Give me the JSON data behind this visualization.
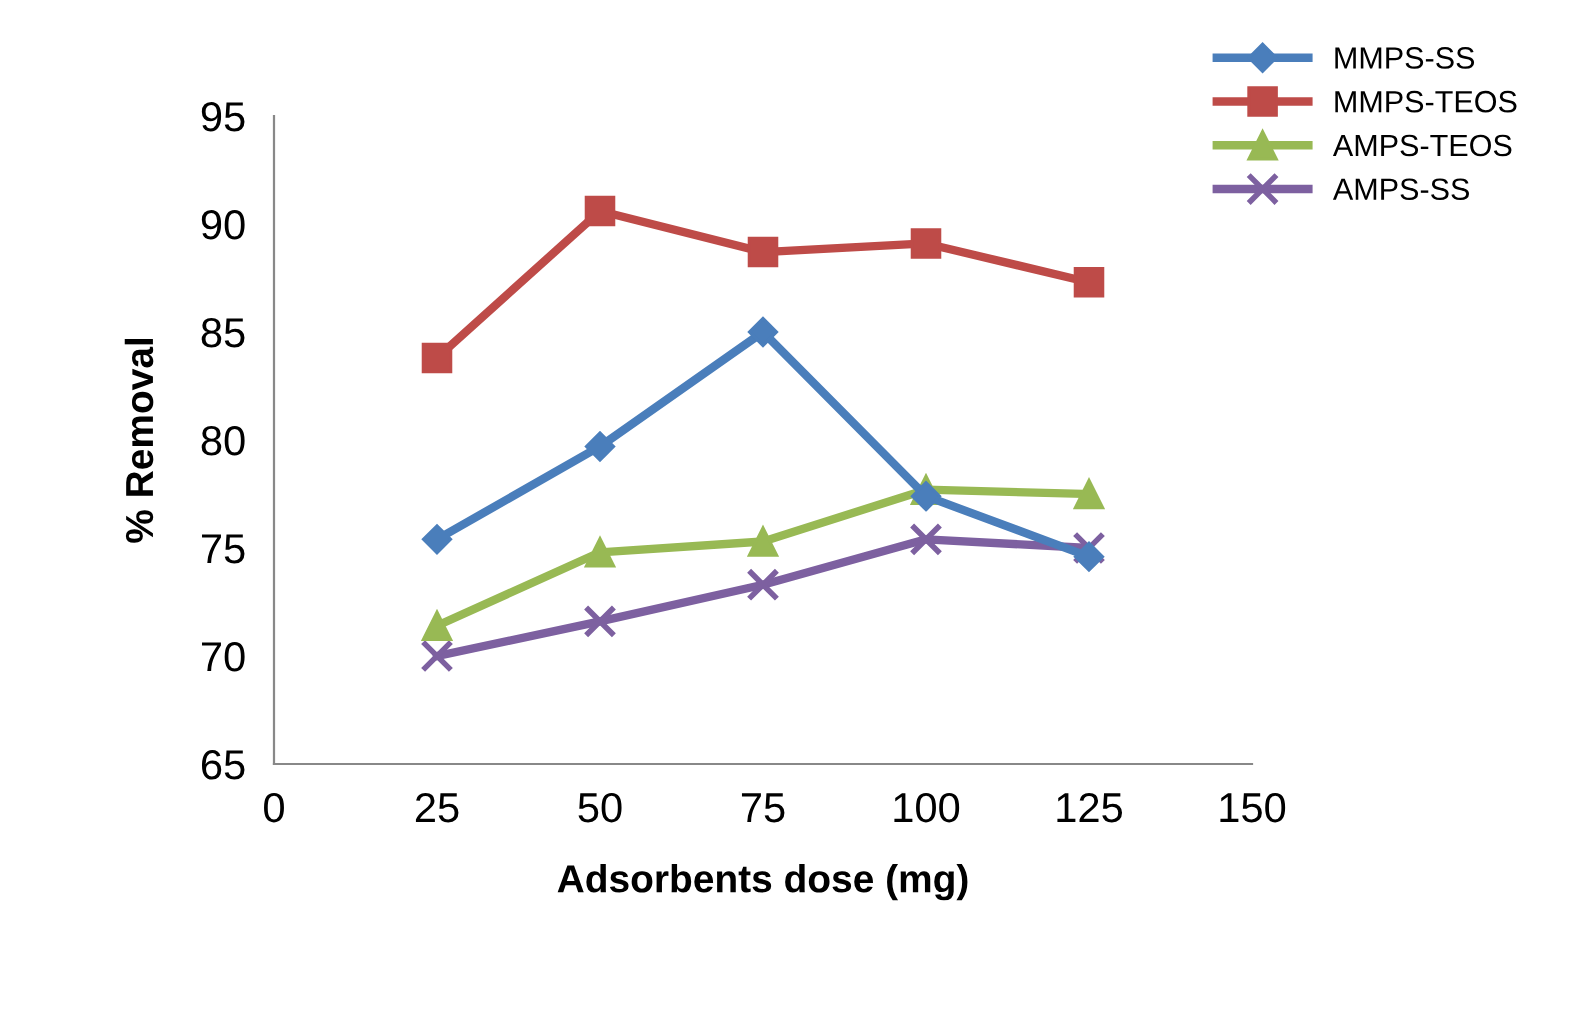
{
  "chart_data": {
    "type": "line",
    "xlabel": "Adsorbents dose (mg)",
    "ylabel": "% Removal",
    "x": [
      25,
      50,
      75,
      100,
      125
    ],
    "series": [
      {
        "name": "MMPS-SS",
        "color": "#4a7ebb",
        "marker": "diamond",
        "values": [
          75.4,
          79.7,
          85.0,
          77.4,
          74.6
        ]
      },
      {
        "name": "MMPS-TEOS",
        "color": "#be4b48",
        "marker": "square",
        "values": [
          83.8,
          90.6,
          88.7,
          89.1,
          87.3
        ]
      },
      {
        "name": "AMPS-TEOS",
        "color": "#98b954",
        "marker": "triangle",
        "values": [
          71.4,
          74.8,
          75.3,
          77.7,
          77.5
        ]
      },
      {
        "name": "AMPS-SS",
        "color": "#7d60a0",
        "marker": "cross",
        "values": [
          70.0,
          71.6,
          73.3,
          75.4,
          75.0
        ]
      }
    ],
    "xlim": [
      0,
      150
    ],
    "xticks": [
      0,
      25,
      50,
      75,
      100,
      125,
      150
    ],
    "ylim": [
      65,
      95
    ],
    "yticks": [
      65,
      70,
      75,
      80,
      85,
      90,
      95
    ],
    "grid": false,
    "legend": "top right",
    "line_style": "solid"
  }
}
